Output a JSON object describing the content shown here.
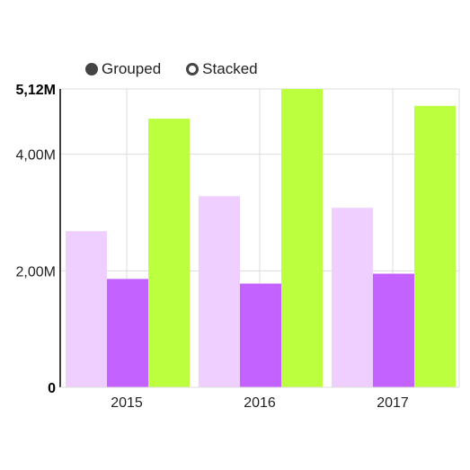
{
  "controls": {
    "options": [
      {
        "label": "Grouped",
        "selected": true
      },
      {
        "label": "Stacked",
        "selected": false
      }
    ]
  },
  "chart_data": {
    "type": "bar",
    "categories": [
      "2015",
      "2016",
      "2017"
    ],
    "series": [
      {
        "values": [
          2680000,
          3280000,
          3080000
        ],
        "color": "#eecfff"
      },
      {
        "values": [
          1860000,
          1780000,
          1950000
        ],
        "color": "#c462ff"
      },
      {
        "values": [
          4610000,
          5120000,
          4830000
        ],
        "color": "#bcff3f"
      }
    ],
    "ylim": [
      0,
      5120000
    ],
    "y_ticks": [
      {
        "value": 0,
        "label": "0",
        "bold": true
      },
      {
        "value": 2000000,
        "label": "2,00M",
        "bold": false
      },
      {
        "value": 4000000,
        "label": "4,00M",
        "bold": false
      },
      {
        "value": 5120000,
        "label": "5,12M",
        "bold": true
      }
    ],
    "grid": true,
    "legend": "none"
  }
}
